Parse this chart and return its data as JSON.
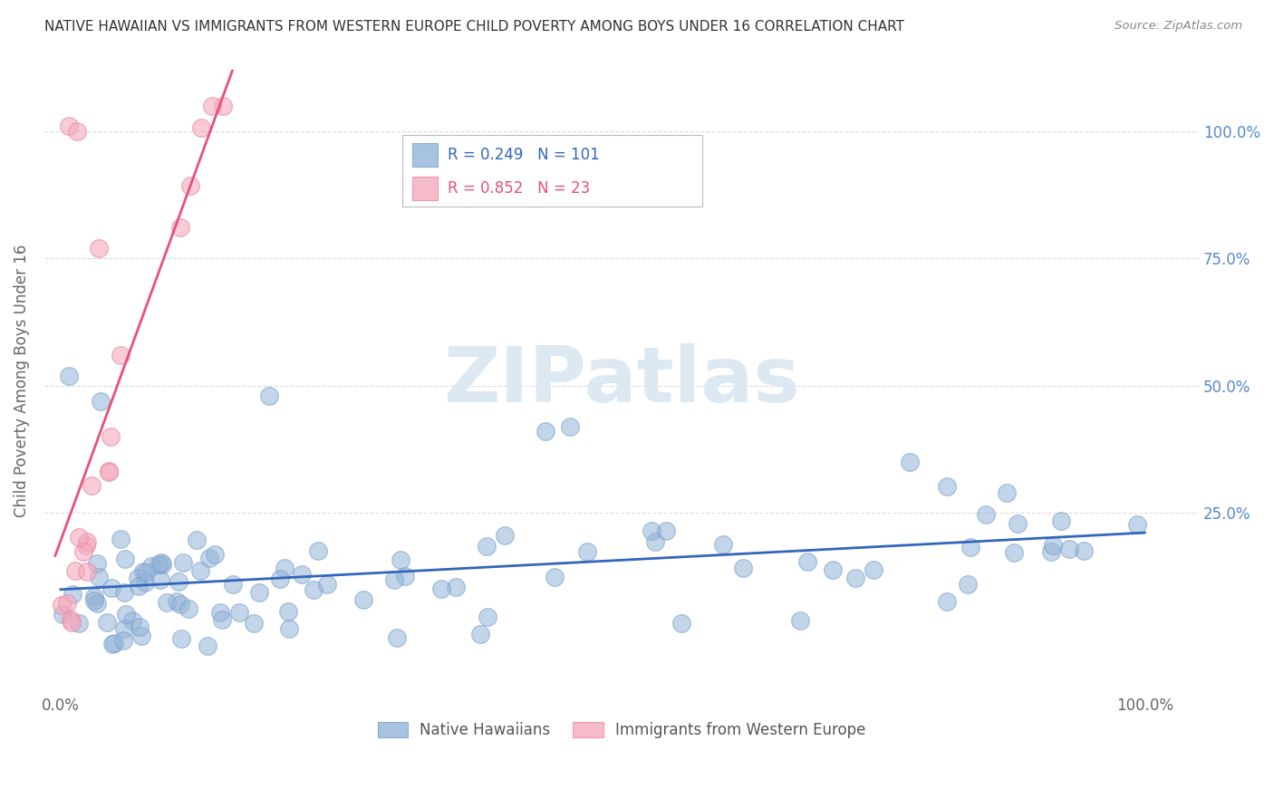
{
  "title": "NATIVE HAWAIIAN VS IMMIGRANTS FROM WESTERN EUROPE CHILD POVERTY AMONG BOYS UNDER 16 CORRELATION CHART",
  "source": "Source: ZipAtlas.com",
  "ylabel": "Child Poverty Among Boys Under 16",
  "blue_R": 0.249,
  "blue_N": 101,
  "pink_R": 0.852,
  "pink_N": 23,
  "blue_color": "#92B4D8",
  "blue_edge_color": "#7AA0CC",
  "pink_color": "#F4AABC",
  "pink_edge_color": "#E888A4",
  "blue_line_color": "#3366BB",
  "pink_line_color": "#E8507A",
  "legend_label_blue": "Native Hawaiians",
  "legend_label_pink": "Immigrants from Western Europe",
  "watermark": "ZIPatlas",
  "background_color": "#FFFFFF",
  "grid_color": "#CCCCCC",
  "title_color": "#333333",
  "axis_label_color": "#666666",
  "right_label_color": "#5588CC"
}
